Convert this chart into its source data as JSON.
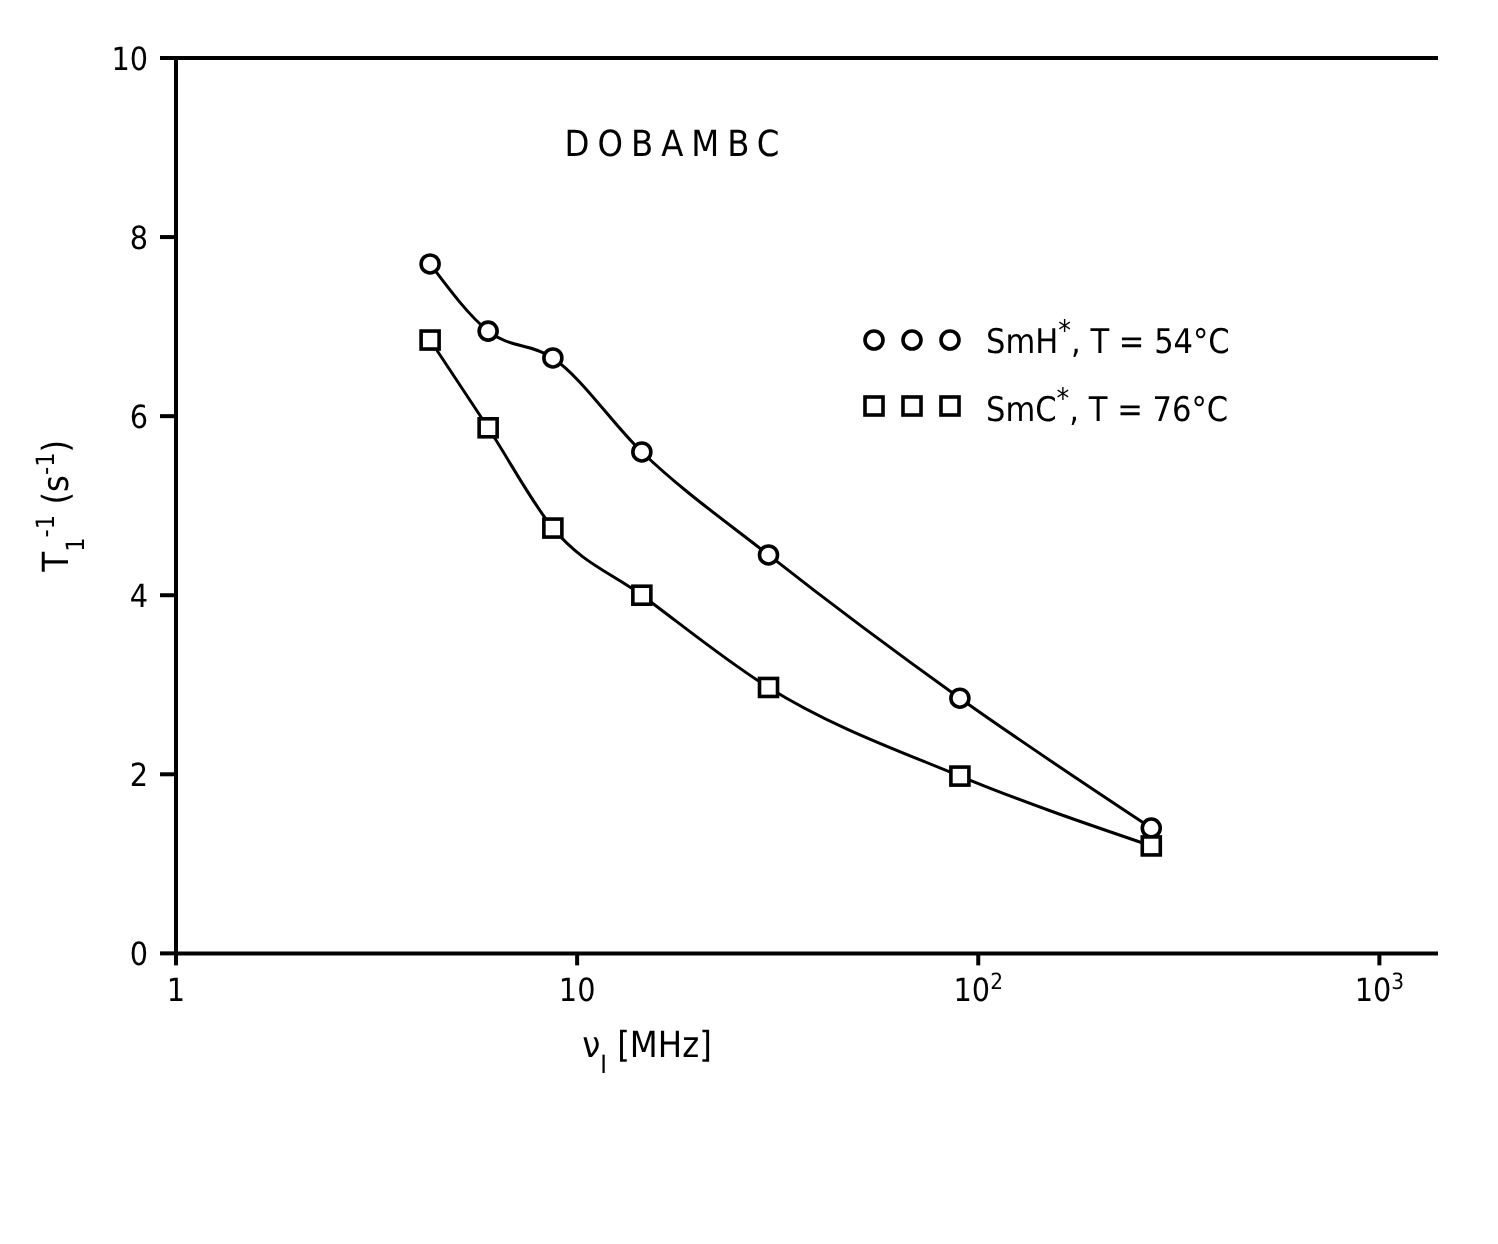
{
  "chart_data": {
    "type": "line",
    "title": "DOBAMBC",
    "xlabel": "ν$_{I}$ [MHz]",
    "ylabel": "T$_{1}$$^{-1}$ (s$^{-1}$)",
    "log": "x",
    "xlim": [
      1,
      1400
    ],
    "xticks": [
      1,
      10,
      {
        "value": 100,
        "label": "10$^{2}$"
      },
      {
        "value": 1000,
        "label": "10$^{3}$"
      }
    ],
    "ylim": [
      0,
      10
    ],
    "yticks": [
      0,
      2,
      4,
      6,
      8,
      10
    ],
    "legend": "top right",
    "line_style": "solid",
    "series": [
      {
        "name": "SmH$^{*}$, T = 54°C",
        "color": "#000000",
        "marker": "circle",
        "x": [
          4.3,
          6,
          8.7,
          14.5,
          30,
          90,
          270
        ],
        "values": [
          7.7,
          6.95,
          6.65,
          5.6,
          4.45,
          2.85,
          1.4
        ]
      },
      {
        "name": "SmC$^{*}$, T = 76°C",
        "color": "#000000",
        "marker": "square",
        "x": [
          4.3,
          6,
          8.7,
          14.5,
          30,
          90,
          270
        ],
        "values": [
          6.85,
          5.87,
          4.75,
          4.0,
          2.97,
          1.98,
          1.2
        ]
      }
    ]
  }
}
